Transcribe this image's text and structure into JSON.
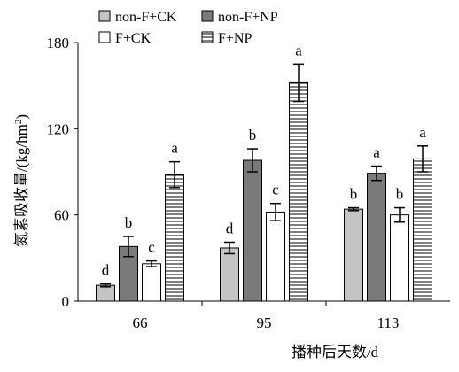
{
  "chart_data": {
    "type": "bar",
    "title": "",
    "xlabel": "播种后天数/d",
    "ylabel": "氮素吸收量/(kg/hm",
    "ylabel_sup": "2",
    "ylabel_end": ")",
    "ylim": [
      0,
      180
    ],
    "yticks": [
      0,
      60,
      120,
      180
    ],
    "grid": false,
    "legend_position": "top",
    "categories": [
      "66",
      "95",
      "113"
    ],
    "series": [
      {
        "name": "non-F+CK",
        "pattern": "light-gray",
        "values": [
          11,
          37,
          64
        ],
        "errors": [
          1,
          4,
          1
        ],
        "labels": [
          "d",
          "d",
          "b"
        ]
      },
      {
        "name": "non-F+NP",
        "pattern": "dark-gray",
        "values": [
          38,
          98,
          89
        ],
        "errors": [
          7,
          8,
          5
        ],
        "labels": [
          "b",
          "b",
          "a"
        ]
      },
      {
        "name": "F+CK",
        "pattern": "white",
        "values": [
          26,
          62,
          60
        ],
        "errors": [
          2,
          6,
          5
        ],
        "labels": [
          "c",
          "c",
          "b"
        ]
      },
      {
        "name": "F+NP",
        "pattern": "horizontal-stripes",
        "values": [
          88,
          152,
          99
        ],
        "errors": [
          9,
          13,
          9
        ],
        "labels": [
          "a",
          "a",
          "a"
        ]
      }
    ],
    "colors": {
      "light-gray": "#c4c4c4",
      "dark-gray": "#7a7a7a",
      "white": "#ffffff",
      "stroke": "#000000"
    }
  }
}
